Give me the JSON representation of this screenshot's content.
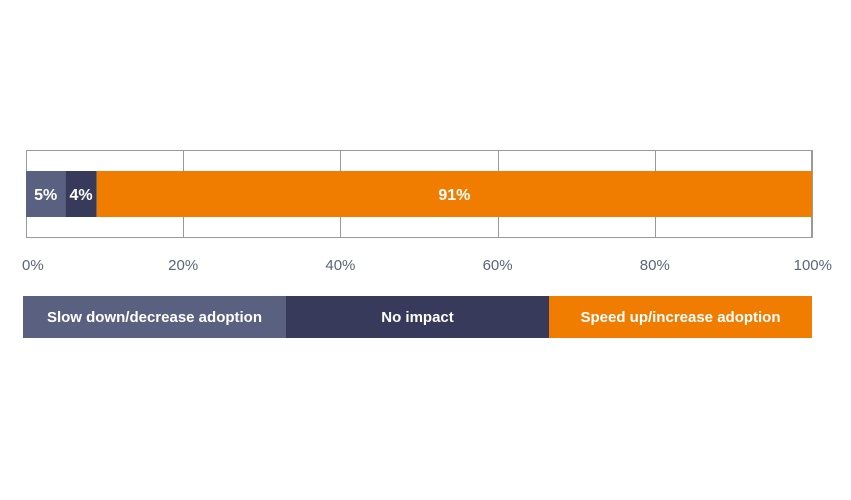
{
  "chart_data": {
    "type": "bar",
    "orientation": "horizontal",
    "stacked": true,
    "categories": [
      ""
    ],
    "series": [
      {
        "name": "Slow down/decrease adoption",
        "values": [
          5
        ],
        "label": "5%",
        "color": "#5a6180"
      },
      {
        "name": "No impact",
        "values": [
          4
        ],
        "label": "4%",
        "color": "#383a5b"
      },
      {
        "name": "Speed up/increase adoption",
        "values": [
          91
        ],
        "label": "91%",
        "color": "#f07c00"
      }
    ],
    "xlim": [
      0,
      100
    ],
    "xticks": [
      0,
      20,
      40,
      60,
      80,
      100
    ],
    "xtick_labels": [
      "0%",
      "20%",
      "40%",
      "60%",
      "80%",
      "100%"
    ],
    "grid": true,
    "legend_position": "bottom",
    "title": "",
    "xlabel": "",
    "ylabel": ""
  },
  "legend": {
    "items": [
      {
        "label": "Slow down/decrease adoption",
        "color": "#5a6180"
      },
      {
        "label": "No impact",
        "color": "#383a5b"
      },
      {
        "label": "Speed up/increase adoption",
        "color": "#f07c00"
      }
    ]
  }
}
